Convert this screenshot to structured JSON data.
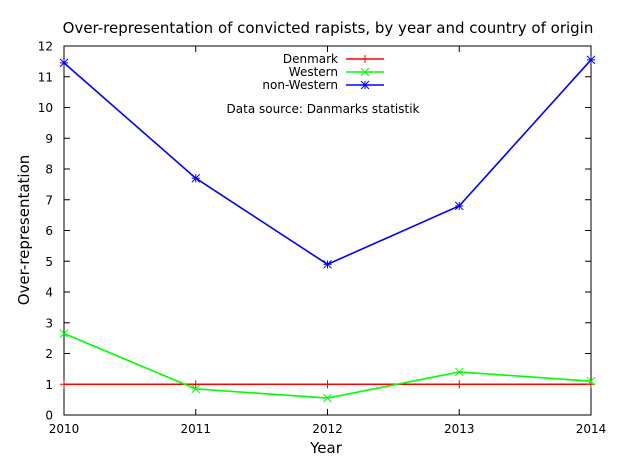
{
  "chart_data": {
    "type": "line",
    "title": "Over-representation of convicted rapists, by year and country of origin",
    "xlabel": "Year",
    "ylabel": "Over-representation",
    "x": [
      2010,
      2011,
      2012,
      2013,
      2014
    ],
    "xlim": [
      2010,
      2014
    ],
    "ylim": [
      0,
      12
    ],
    "xticks": [
      "2010",
      "2011",
      "2012",
      "2013",
      "2014"
    ],
    "yticks": [
      "0",
      "1",
      "2",
      "3",
      "4",
      "5",
      "6",
      "7",
      "8",
      "9",
      "10",
      "11",
      "12"
    ],
    "grid": false,
    "legend_position": "top-center",
    "annotation": "Data source: Danmarks statistik",
    "series": [
      {
        "name": "Denmark",
        "color": "#ff0000",
        "marker": "plus",
        "values": [
          1,
          1,
          1,
          1,
          1
        ]
      },
      {
        "name": "Western",
        "color": "#00ff00",
        "marker": "cross",
        "values": [
          2.65,
          0.85,
          0.55,
          1.4,
          1.1
        ]
      },
      {
        "name": "non-Western",
        "color": "#0000ff",
        "marker": "star",
        "values": [
          11.45,
          7.7,
          4.9,
          6.8,
          11.55
        ]
      }
    ]
  }
}
